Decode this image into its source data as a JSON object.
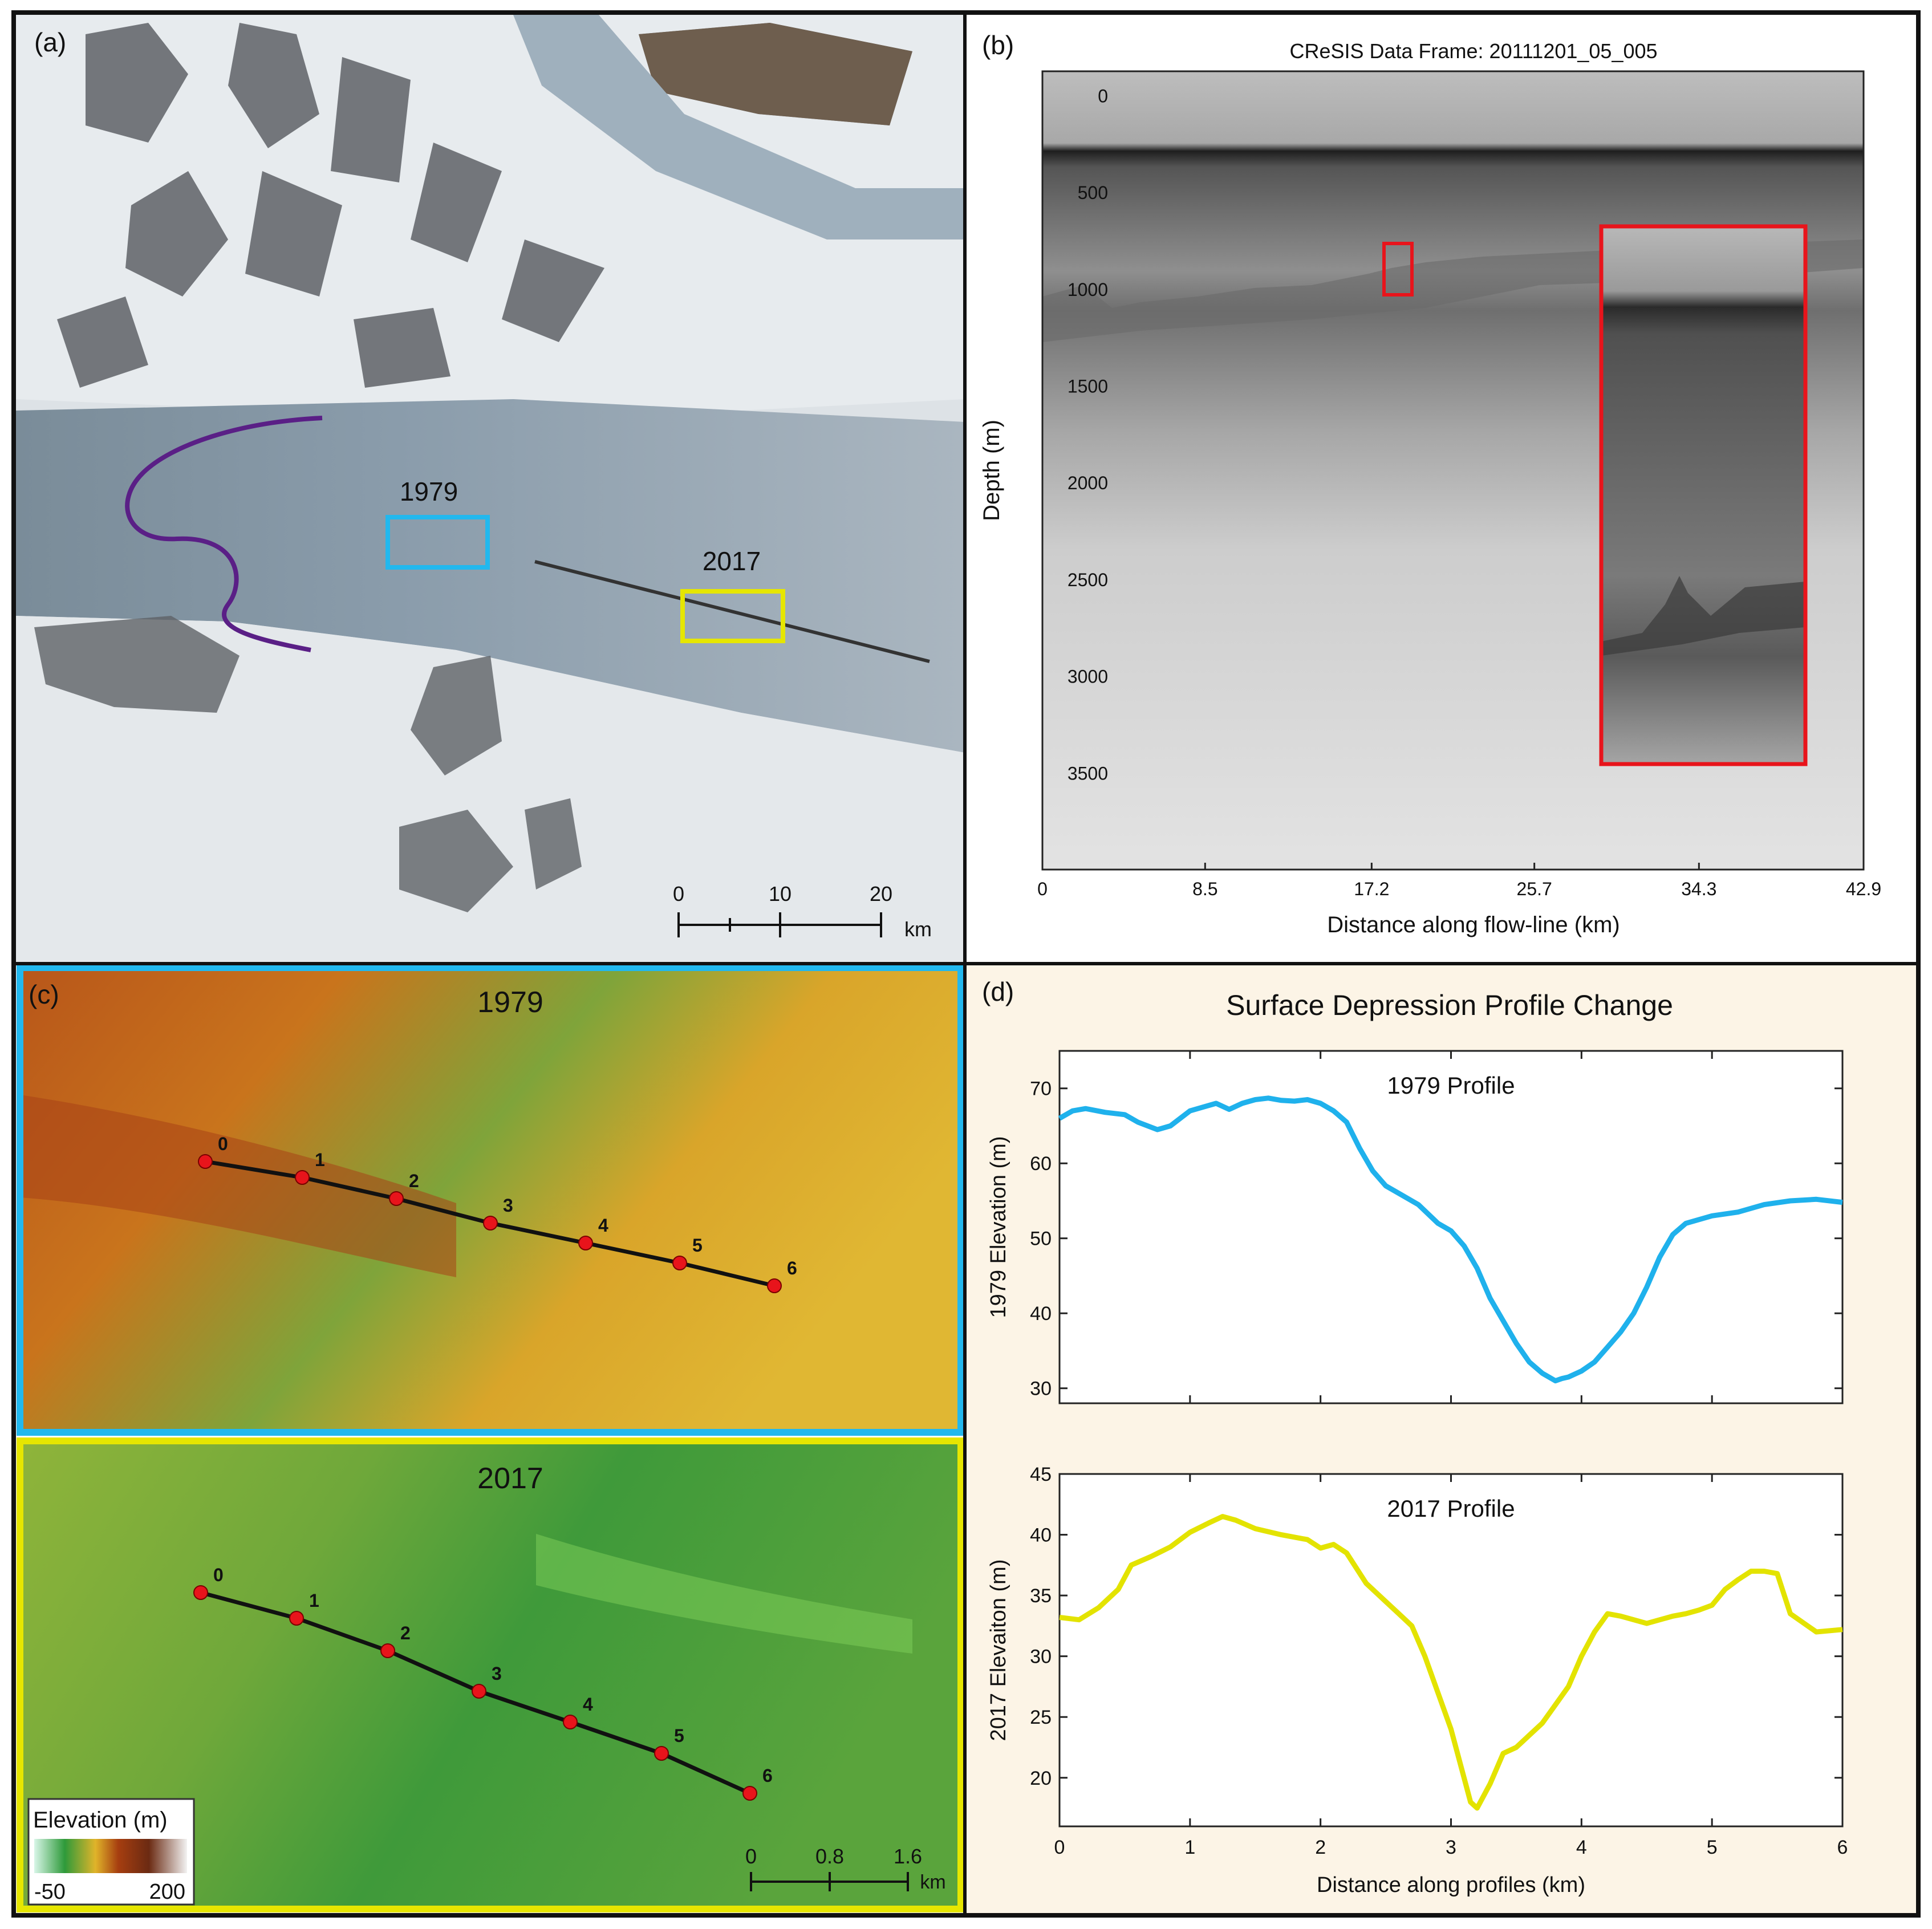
{
  "panels": {
    "a": {
      "label": "(a)",
      "box_1979_label": "1979",
      "box_2017_label": "2017",
      "colors": {
        "box_1979": "#22b8ee",
        "box_2017": "#e6e600",
        "grounding_line": "#5a1f86",
        "flowline": "#333333"
      },
      "scale_bar": {
        "ticks": [
          "0",
          "10",
          "20"
        ],
        "unit": "km"
      }
    },
    "b": {
      "label": "(b)",
      "title": "CReSIS Data Frame: 20111201_05_005",
      "xlabel": "Distance along flow-line (km)",
      "ylabel": "Depth (m)",
      "xticks": [
        "0",
        "8.5",
        "17.2",
        "25.7",
        "34.3",
        "42.9"
      ],
      "yticks": [
        "0",
        "500",
        "1000",
        "1500",
        "2000",
        "2500",
        "3000",
        "3500"
      ],
      "highlight_color": "#e8141b"
    },
    "c": {
      "label": "(c)",
      "title_1979": "1979",
      "title_2017": "2017",
      "point_labels": [
        "0",
        "1",
        "2",
        "3",
        "4",
        "5",
        "6"
      ],
      "legend": {
        "title": "Elevation (m)",
        "min": "-50",
        "max": "200"
      },
      "scale_bar": {
        "ticks": [
          "0",
          "0.8",
          "1.6"
        ],
        "unit": "km"
      }
    },
    "d": {
      "label": "(d)",
      "title": "Surface Depression Profile Change"
    }
  },
  "chart_data": [
    {
      "type": "line",
      "title": "1979 Profile",
      "xlabel": "",
      "ylabel": "1979 Elevation (m)",
      "xlim": [
        0,
        6
      ],
      "ylim": [
        28,
        75
      ],
      "yticks": [
        30,
        40,
        50,
        60,
        70
      ],
      "color": "#1fb1ec",
      "x": [
        0,
        0.1,
        0.2,
        0.35,
        0.5,
        0.6,
        0.75,
        0.85,
        1.0,
        1.1,
        1.2,
        1.3,
        1.4,
        1.5,
        1.6,
        1.7,
        1.8,
        1.9,
        2.0,
        2.1,
        2.2,
        2.3,
        2.4,
        2.5,
        2.6,
        2.75,
        2.9,
        3.0,
        3.1,
        3.2,
        3.3,
        3.4,
        3.5,
        3.6,
        3.7,
        3.8,
        3.85,
        3.9,
        4.0,
        4.1,
        4.2,
        4.3,
        4.4,
        4.5,
        4.6,
        4.7,
        4.8,
        5.0,
        5.2,
        5.4,
        5.6,
        5.8,
        6.0
      ],
      "y": [
        66,
        67,
        67.3,
        66.8,
        66.5,
        65.5,
        64.5,
        65,
        67,
        67.5,
        68,
        67.2,
        68,
        68.5,
        68.7,
        68.4,
        68.3,
        68.5,
        68,
        67,
        65.5,
        62,
        59,
        57,
        56,
        54.5,
        52,
        51,
        49,
        46,
        42,
        39,
        36,
        33.5,
        32,
        31,
        31.3,
        31.5,
        32.3,
        33.5,
        35.5,
        37.5,
        40,
        43.5,
        47.5,
        50.5,
        52,
        53,
        53.5,
        54.5,
        55,
        55.2,
        54.8
      ]
    },
    {
      "type": "line",
      "title": "2017 Profile",
      "xlabel": "Distance along profiles (km)",
      "ylabel": "2017 Elevaiton (m)",
      "xlim": [
        0,
        6
      ],
      "ylim": [
        16,
        45
      ],
      "yticks": [
        20,
        25,
        30,
        35,
        40,
        45
      ],
      "xticks": [
        0,
        1,
        2,
        3,
        4,
        5,
        6
      ],
      "color": "#e3e300",
      "x": [
        0,
        0.15,
        0.3,
        0.45,
        0.55,
        0.7,
        0.85,
        1.0,
        1.15,
        1.25,
        1.35,
        1.5,
        1.7,
        1.9,
        2.0,
        2.1,
        2.2,
        2.35,
        2.5,
        2.6,
        2.7,
        2.8,
        2.9,
        3.0,
        3.1,
        3.15,
        3.2,
        3.3,
        3.4,
        3.5,
        3.6,
        3.7,
        3.8,
        3.9,
        4.0,
        4.1,
        4.2,
        4.3,
        4.4,
        4.5,
        4.6,
        4.7,
        4.8,
        4.9,
        5.0,
        5.1,
        5.2,
        5.3,
        5.4,
        5.5,
        5.6,
        5.8,
        6.0
      ],
      "y": [
        33.2,
        33,
        34,
        35.5,
        37.5,
        38.2,
        39,
        40.2,
        41,
        41.5,
        41.2,
        40.5,
        40,
        39.6,
        38.9,
        39.2,
        38.5,
        36,
        34.5,
        33.5,
        32.5,
        30,
        27,
        24,
        20,
        18,
        17.5,
        19.5,
        22,
        22.5,
        23.5,
        24.5,
        26,
        27.5,
        30,
        32,
        33.5,
        33.3,
        33,
        32.7,
        33,
        33.3,
        33.5,
        33.8,
        34.2,
        35.5,
        36.3,
        37,
        37,
        36.8,
        33.5,
        32,
        32.2
      ]
    }
  ]
}
